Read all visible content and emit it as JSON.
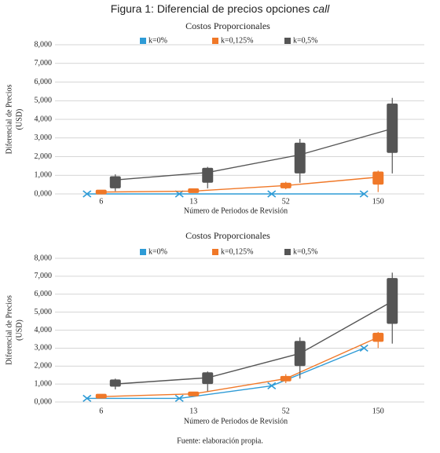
{
  "caption": {
    "text": "Figura 1: Diferencial de precios opciones",
    "emphasis": "call"
  },
  "footer": "Fuente: elaboración propia.",
  "chart_data": [
    {
      "type": "line",
      "title": "Costos Proporcionales",
      "y_label": [
        "Diferencial de Precios",
        "(USD)"
      ],
      "x_label": "Número de Periodos de Revisión",
      "categories": [
        "6",
        "13",
        "52",
        "150"
      ],
      "ylim": [
        0,
        8000
      ],
      "yticks": [
        {
          "value": 0,
          "label": "0,000"
        },
        {
          "value": 1000,
          "label": "1,000"
        },
        {
          "value": 2000,
          "label": "2,000"
        },
        {
          "value": 3000,
          "label": "3,000"
        },
        {
          "value": 4000,
          "label": "4,000"
        },
        {
          "value": 5000,
          "label": "5,000"
        },
        {
          "value": 6000,
          "label": "6,000"
        },
        {
          "value": 7000,
          "label": "7,000"
        },
        {
          "value": 8000,
          "label": "8,000"
        }
      ],
      "grid": true,
      "legend": "top",
      "series": [
        {
          "name": "k=0%",
          "color": "#2e9bd6",
          "values": [
            0,
            0,
            0,
            0
          ]
        },
        {
          "name": "k=0,125%",
          "color": "#f07828",
          "values": [
            100,
            150,
            450,
            900
          ],
          "low": [
            50,
            100,
            250,
            100
          ],
          "q1": [
            50,
            100,
            300,
            500
          ],
          "q3": [
            150,
            250,
            600,
            1200
          ],
          "high": [
            200,
            250,
            650,
            1250
          ]
        },
        {
          "name": "k=0,5%",
          "color": "#555555",
          "values": [
            750,
            1150,
            2100,
            3500
          ],
          "low": [
            150,
            300,
            600,
            1100
          ],
          "q1": [
            300,
            600,
            1100,
            2200
          ],
          "q3": [
            950,
            1400,
            2750,
            4850
          ],
          "high": [
            1050,
            1450,
            2950,
            5150
          ]
        }
      ]
    },
    {
      "type": "line",
      "title": "Costos Proporcionales",
      "y_label": [
        "Diferencial de Precios",
        "(USD)"
      ],
      "x_label": "Número de Periodos de Revisión",
      "categories": [
        "6",
        "13",
        "52",
        "150"
      ],
      "ylim": [
        0,
        8000
      ],
      "yticks": [
        {
          "value": 0,
          "label": "0,000"
        },
        {
          "value": 1000,
          "label": "1,000"
        },
        {
          "value": 2000,
          "label": "2,000"
        },
        {
          "value": 3000,
          "label": "3,000"
        },
        {
          "value": 4000,
          "label": "4,000"
        },
        {
          "value": 5000,
          "label": "5,000"
        },
        {
          "value": 6000,
          "label": "6,000"
        },
        {
          "value": 7000,
          "label": "7,000"
        },
        {
          "value": 8000,
          "label": "8,000"
        }
      ],
      "grid": true,
      "legend": "top",
      "series": [
        {
          "name": "k=0%",
          "color": "#2e9bd6",
          "values": [
            200,
            200,
            900,
            3000
          ]
        },
        {
          "name": "k=0,125%",
          "color": "#f07828",
          "values": [
            300,
            450,
            1300,
            3600
          ],
          "low": [
            250,
            350,
            1050,
            3000
          ],
          "q1": [
            250,
            350,
            1150,
            3350
          ],
          "q3": [
            400,
            550,
            1450,
            3850
          ],
          "high": [
            400,
            550,
            1550,
            3900
          ]
        },
        {
          "name": "k=0,5%",
          "color": "#555555",
          "values": [
            1000,
            1350,
            2700,
            5600
          ],
          "low": [
            700,
            600,
            1300,
            3250
          ],
          "q1": [
            850,
            1000,
            2000,
            4350
          ],
          "q3": [
            1250,
            1650,
            3400,
            6900
          ],
          "high": [
            1300,
            1700,
            3600,
            7200
          ]
        }
      ]
    }
  ]
}
